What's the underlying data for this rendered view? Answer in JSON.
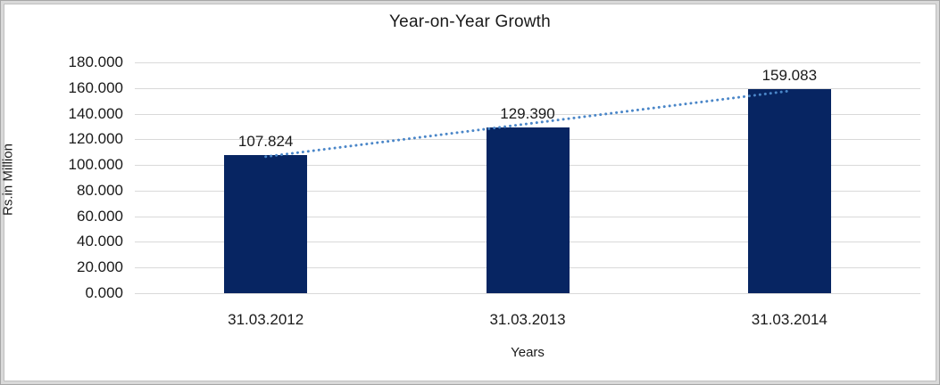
{
  "chart_data": {
    "type": "bar",
    "title": "Year-on-Year Growth",
    "categories": [
      "31.03.2012",
      "31.03.2013",
      "31.03.2014"
    ],
    "values": [
      107.824,
      129.39,
      159.083
    ],
    "data_labels": [
      "107.824",
      "129.390",
      "159.083"
    ],
    "xlabel": "Years",
    "ylabel": "Rs.in Million",
    "ylim": [
      0,
      180
    ],
    "y_tick_step": 20,
    "y_tick_labels": [
      "0.000",
      "20.000",
      "40.000",
      "60.000",
      "80.000",
      "100.000",
      "120.000",
      "140.000",
      "160.000",
      "180.000"
    ],
    "grid": true,
    "legend": "none",
    "trendline": {
      "type": "linear",
      "style": "dotted",
      "fitted_values": [
        106.47,
        132.1,
        157.73
      ]
    }
  },
  "colors": {
    "bar": "#072562",
    "trendline": "#4a86c8",
    "gridline": "#d9d9d9",
    "chart_background": "#ffffff",
    "outer_frame": "#d9d9d9",
    "chart_border": "#bfbfbf",
    "text": "#1a1a1a"
  }
}
